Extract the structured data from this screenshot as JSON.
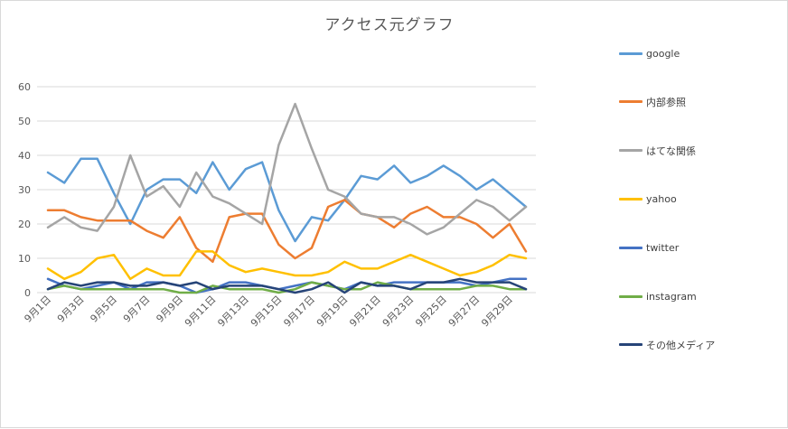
{
  "chart_data": {
    "type": "line",
    "title": "アクセス元グラフ",
    "xlabel": "",
    "ylabel": "",
    "ylim": [
      0,
      60
    ],
    "yticks": [
      0,
      10,
      20,
      30,
      40,
      50,
      60
    ],
    "grid": true,
    "legend_position": "right",
    "categories": [
      "9月1日",
      "9月2日",
      "9月3日",
      "9月4日",
      "9月5日",
      "9月6日",
      "9月7日",
      "9月8日",
      "9月9日",
      "9月10日",
      "9月11日",
      "9月12日",
      "9月13日",
      "9月14日",
      "9月15日",
      "9月16日",
      "9月17日",
      "9月18日",
      "9月19日",
      "9月20日",
      "9月21日",
      "9月22日",
      "9月23日",
      "9月24日",
      "9月25日",
      "9月26日",
      "9月27日",
      "9月28日",
      "9月29日",
      "9月30日"
    ],
    "tick_labels": [
      "9月1日",
      "9月3日",
      "9月5日",
      "9月7日",
      "9月9日",
      "9月11日",
      "9月13日",
      "9月15日",
      "9月17日",
      "9月19日",
      "9月21日",
      "9月23日",
      "9月25日",
      "9月27日",
      "9月29日"
    ],
    "series": [
      {
        "name": "google",
        "color": "#5b9bd5",
        "values": [
          35,
          32,
          39,
          39,
          29,
          20,
          30,
          33,
          33,
          29,
          38,
          30,
          36,
          38,
          24,
          15,
          22,
          21,
          27,
          34,
          33,
          37,
          32,
          34,
          37,
          34,
          30,
          33,
          29,
          25
        ]
      },
      {
        "name": "内部参照",
        "color": "#ed7d31",
        "values": [
          24,
          24,
          22,
          21,
          21,
          21,
          18,
          16,
          22,
          13,
          9,
          22,
          23,
          23,
          14,
          10,
          13,
          25,
          27,
          23,
          22,
          19,
          23,
          25,
          22,
          22,
          20,
          16,
          20,
          12
        ]
      },
      {
        "name": "はてな関係",
        "color": "#a5a5a5",
        "values": [
          19,
          22,
          19,
          18,
          25,
          40,
          28,
          31,
          25,
          35,
          28,
          26,
          23,
          20,
          43,
          55,
          42,
          30,
          28,
          23,
          22,
          22,
          20,
          17,
          19,
          23,
          27,
          25,
          21,
          25
        ]
      },
      {
        "name": "yahoo",
        "color": "#ffc000",
        "values": [
          7,
          4,
          6,
          10,
          11,
          4,
          7,
          5,
          5,
          12,
          12,
          8,
          6,
          7,
          6,
          5,
          5,
          6,
          9,
          7,
          7,
          9,
          11,
          9,
          7,
          5,
          6,
          8,
          11,
          10
        ]
      },
      {
        "name": "twitter",
        "color": "#4472c4",
        "values": [
          4,
          2,
          1,
          2,
          3,
          1,
          3,
          3,
          2,
          0,
          1,
          3,
          3,
          2,
          1,
          2,
          3,
          2,
          1,
          3,
          2,
          3,
          3,
          3,
          3,
          3,
          2,
          3,
          4,
          4
        ]
      },
      {
        "name": "instagram",
        "color": "#70ad47",
        "values": [
          1,
          2,
          1,
          1,
          1,
          1,
          1,
          1,
          0,
          0,
          2,
          1,
          1,
          1,
          0,
          1,
          3,
          2,
          1,
          1,
          3,
          2,
          1,
          1,
          1,
          1,
          2,
          2,
          1,
          1
        ]
      },
      {
        "name": "その他メディア",
        "color": "#264478",
        "values": [
          1,
          3,
          2,
          3,
          3,
          2,
          2,
          3,
          2,
          3,
          1,
          2,
          2,
          2,
          1,
          0,
          1,
          3,
          0,
          3,
          2,
          2,
          1,
          3,
          3,
          4,
          3,
          3,
          3,
          1
        ]
      }
    ]
  }
}
